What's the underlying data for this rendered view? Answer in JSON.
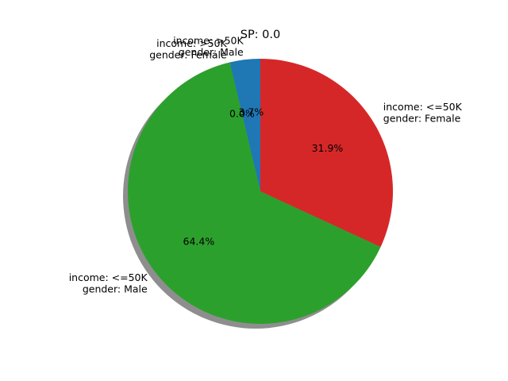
{
  "chart_data": {
    "type": "pie",
    "title": "SP: 0.0",
    "shadow": true,
    "start_angle": 90,
    "direction": "counterclockwise",
    "slices": [
      {
        "label_lines": [
          "income: >50K",
          "gender: Male"
        ],
        "value": 3.7,
        "pct_label": "3.7%",
        "color": "#1f77b4"
      },
      {
        "label_lines": [
          "income: >50K",
          "gender: Female"
        ],
        "value": 0.0,
        "pct_label": "0.0%",
        "color": "#ff7f0e"
      },
      {
        "label_lines": [
          "income: <=50K",
          "gender: Male"
        ],
        "value": 64.4,
        "pct_label": "64.4%",
        "color": "#2ca02c"
      },
      {
        "label_lines": [
          "income: <=50K",
          "gender: Female"
        ],
        "value": 31.9,
        "pct_label": "31.9%",
        "color": "#d62728"
      }
    ]
  }
}
